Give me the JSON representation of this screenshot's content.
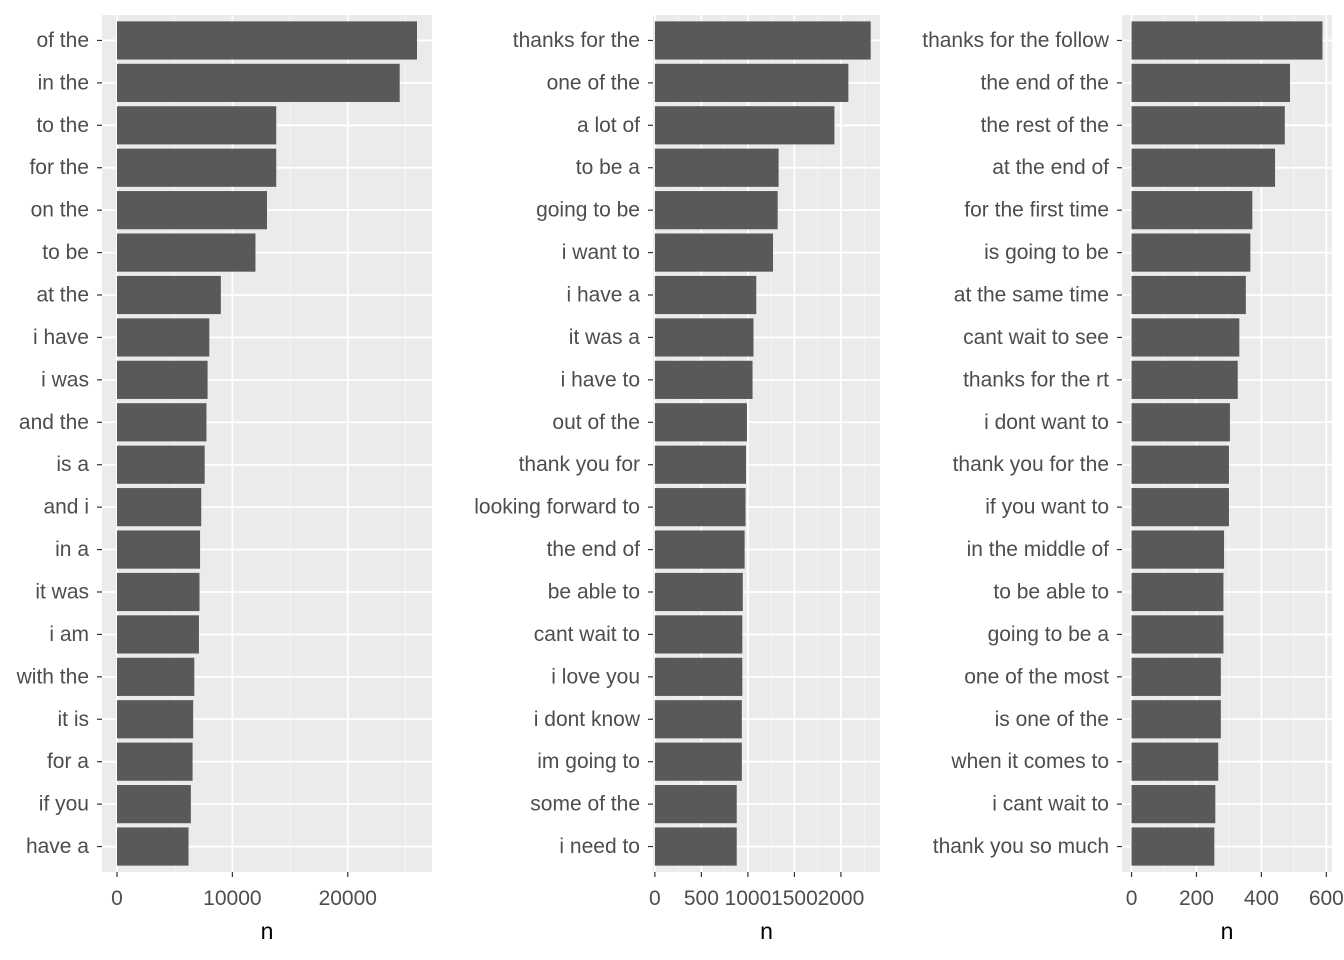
{
  "colors": {
    "panel_bg": "#EBEBEB",
    "grid_major": "#FFFFFF",
    "grid_minor": "#F5F5F5",
    "bar_fill": "#595959",
    "tick_label": "#4D4D4D",
    "axis_title": "#000000"
  },
  "chart_data": [
    {
      "type": "bar",
      "orientation": "horizontal",
      "xlabel": "n",
      "ylabel": "",
      "xlim": [
        -1300,
        27300
      ],
      "x_ticks": [
        0,
        10000,
        20000
      ],
      "x_tick_labels": [
        "0",
        "10000",
        "20000"
      ],
      "grid": true,
      "categories": [
        "of the",
        "in the",
        "to the",
        "for the",
        "on the",
        "to be",
        "at the",
        "i have",
        "i was",
        "and the",
        "is a",
        "and i",
        "in a",
        "it was",
        "i am",
        "with the",
        "it is",
        "for a",
        "if you",
        "have a"
      ],
      "values": [
        26000,
        24500,
        13800,
        13800,
        13000,
        12000,
        9000,
        8000,
        7850,
        7750,
        7600,
        7300,
        7200,
        7150,
        7100,
        6700,
        6600,
        6550,
        6400,
        6200
      ]
    },
    {
      "type": "bar",
      "orientation": "horizontal",
      "xlabel": "n",
      "ylabel": "",
      "xlim": [
        -20,
        2420
      ],
      "x_ticks": [
        0,
        500,
        1000,
        1500,
        2000
      ],
      "x_tick_labels": [
        "0",
        "500",
        "1000",
        "1500",
        "2000"
      ],
      "grid": true,
      "categories": [
        "thanks for the",
        "one of the",
        "a lot of",
        "to be a",
        "going to be",
        "i want to",
        "i have a",
        "it was a",
        "i have to",
        "out of the",
        "thank you for",
        "looking forward to",
        "the end of",
        "be able to",
        "cant wait to",
        "i love you",
        "i dont know",
        "im going to",
        "some of the",
        "i need to"
      ],
      "values": [
        2320,
        2080,
        1930,
        1330,
        1320,
        1270,
        1090,
        1060,
        1050,
        990,
        980,
        975,
        965,
        945,
        940,
        940,
        935,
        935,
        880,
        880
      ]
    },
    {
      "type": "bar",
      "orientation": "horizontal",
      "xlabel": "n",
      "ylabel": "",
      "xlim": [
        -29.4,
        617.4
      ],
      "x_ticks": [
        0,
        200,
        400,
        600
      ],
      "x_tick_labels": [
        "0",
        "200",
        "400",
        "600"
      ],
      "grid": true,
      "categories": [
        "thanks for the follow",
        "the end of the",
        "the rest of the",
        "at the end of",
        "for the first time",
        "is going to be",
        "at the same time",
        "cant wait to see",
        "thanks for the rt",
        "i dont want to",
        "thank you for the",
        "if you want to",
        "in the middle of",
        "to be able to",
        "going to be a",
        "one of the most",
        "is one of the",
        "when it comes to",
        "i cant wait to",
        "thank you so much"
      ],
      "values": [
        588,
        488,
        472,
        442,
        372,
        366,
        352,
        332,
        327,
        303,
        300,
        300,
        285,
        283,
        283,
        275,
        275,
        267,
        258,
        255
      ]
    }
  ]
}
